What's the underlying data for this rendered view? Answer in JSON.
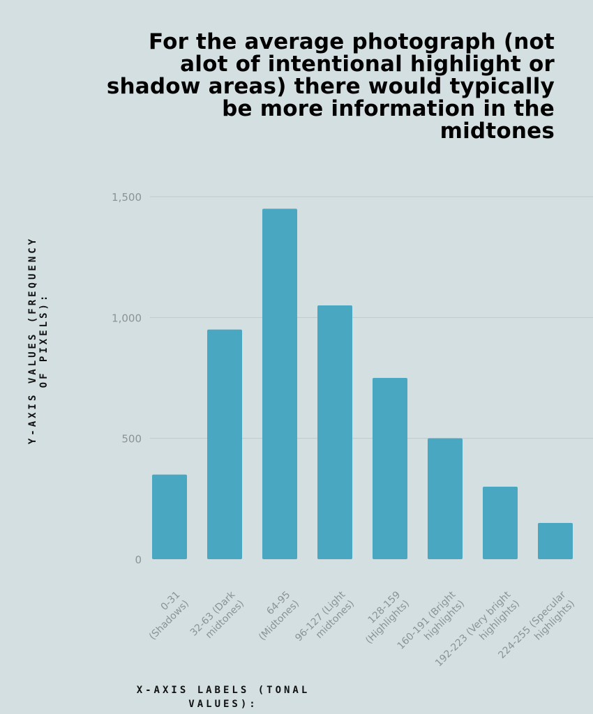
{
  "chart_data": {
    "type": "bar",
    "title": "For the average photograph (not alot of intentional highlight or shadow areas) there would typically be more information in the midtones",
    "xlabel": "X-AXIS LABELS (TONAL VALUES):",
    "ylabel": "Y-AXIS VALUES (FREQUENCY OF PIXELS):",
    "categories": [
      "0-31 (Shadows)",
      "32-63 (Dark midtones)",
      "64-95 (Midtones)",
      "96-127 (Light midtones)",
      "128-159 (Highlights)",
      "160-191 (Bright highlights)",
      "192-223 (Very bright highlights)",
      "224-255 (Specular highlights)"
    ],
    "category_lines": [
      [
        "0-31",
        "(Shadows)"
      ],
      [
        "32-63 (Dark",
        "midtones)"
      ],
      [
        "64-95",
        "(Midtones)"
      ],
      [
        "96-127 (Light",
        "midtones)"
      ],
      [
        "128-159",
        "(Highlights)"
      ],
      [
        "160-191 (Bright",
        "highlights)"
      ],
      [
        "192-223 (Very bright",
        "highlights)"
      ],
      [
        "224-255 (Specular",
        "highlights)"
      ]
    ],
    "values": [
      350,
      950,
      1450,
      1050,
      750,
      500,
      300,
      150
    ],
    "yticks": [
      0,
      500,
      1000,
      1500
    ],
    "ytick_labels": [
      "0",
      "500",
      "1,000",
      "1,500"
    ],
    "ylim": [
      0,
      1500
    ],
    "grid": true,
    "bar_color": "#4aa7c2",
    "grid_color": "#bfc9cb"
  }
}
